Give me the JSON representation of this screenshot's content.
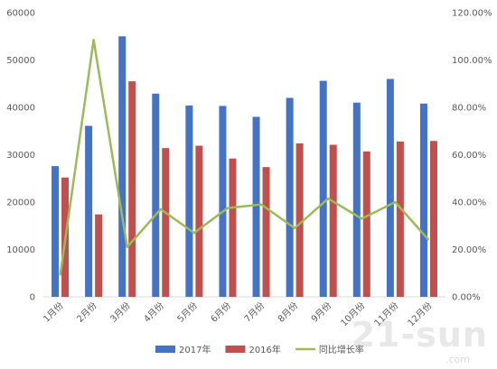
{
  "chart_data": {
    "type": "bar",
    "categories": [
      "1月份",
      "2月份",
      "3月份",
      "4月份",
      "5月份",
      "6月份",
      "7月份",
      "8月份",
      "9月份",
      "10月份",
      "11月份",
      "12月份"
    ],
    "series": [
      {
        "name": "2017年",
        "type": "bar",
        "axis": "left",
        "color": "#4472c4",
        "values": [
          27600,
          36100,
          55000,
          42900,
          40400,
          40300,
          38000,
          42000,
          45600,
          41000,
          46000,
          40800
        ]
      },
      {
        "name": "2016年",
        "type": "bar",
        "axis": "left",
        "color": "#c0504d",
        "values": [
          25200,
          17400,
          45500,
          31400,
          31900,
          29200,
          27400,
          32400,
          32100,
          30700,
          32800,
          32900
        ]
      },
      {
        "name": "同比增长率",
        "type": "line",
        "axis": "right",
        "color": "#9bbb59",
        "values": [
          0.09,
          1.085,
          0.21,
          0.37,
          0.27,
          0.375,
          0.39,
          0.29,
          0.415,
          0.33,
          0.4,
          0.24
        ]
      }
    ],
    "y_left": {
      "min": 0,
      "max": 60000,
      "ticks": [
        "0",
        "10000",
        "20000",
        "30000",
        "40000",
        "50000",
        "60000"
      ]
    },
    "y_right": {
      "min": 0,
      "max": 1.2,
      "ticks": [
        "0.00%",
        "20.00%",
        "40.00%",
        "60.00%",
        "80.00%",
        "100.00%",
        "120.00%"
      ]
    },
    "grid": false,
    "legend_position": "bottom"
  },
  "watermark": {
    "text": "21-sun",
    "sub": ".com"
  }
}
